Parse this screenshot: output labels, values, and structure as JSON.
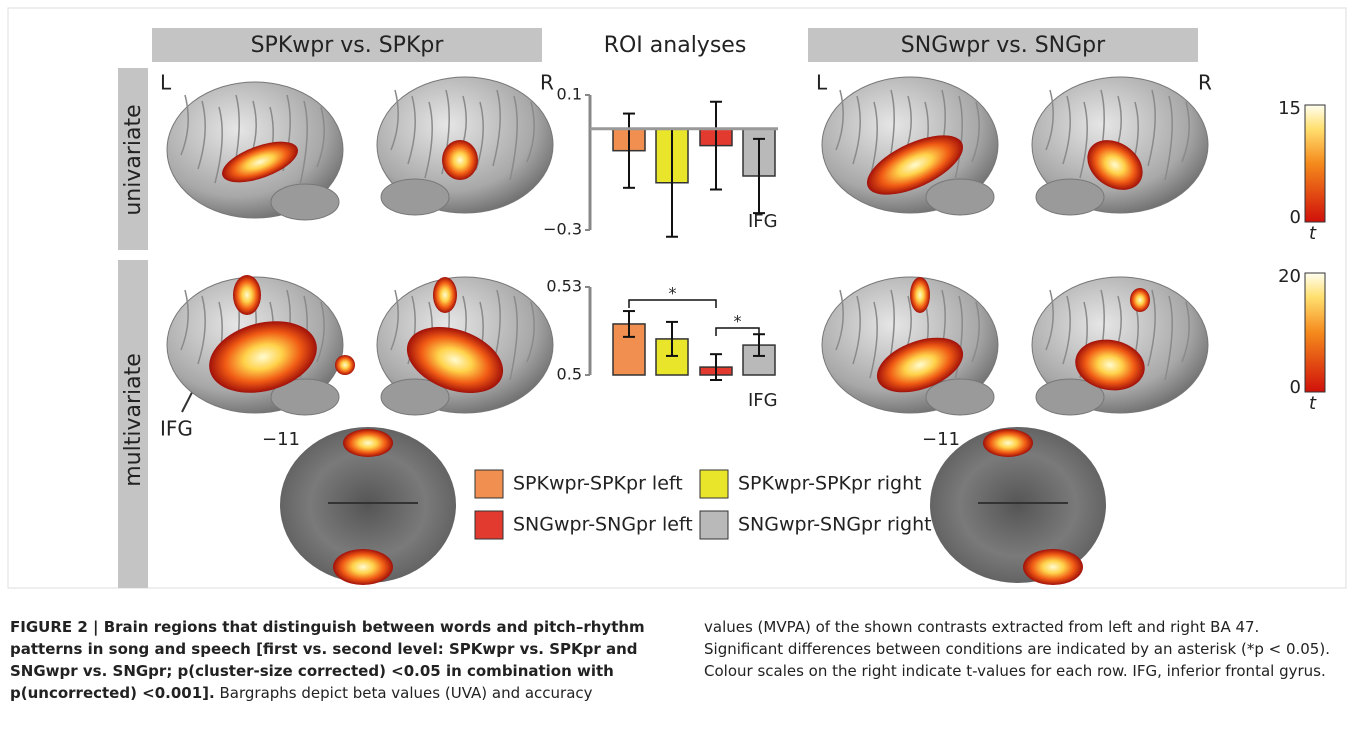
{
  "headers": [
    "SPKwpr vs. SPKpr",
    "ROI analyses",
    "SNGwpr vs. SNGpr"
  ],
  "hemisphere_labels": [
    "L",
    "R",
    "L",
    "R"
  ],
  "row_labels": [
    "univariate",
    "multivariate"
  ],
  "region_callout": "IFG",
  "slice_labels": [
    "−11",
    "−11"
  ],
  "colorbars": [
    {
      "min": 0,
      "max": 15,
      "label": "t"
    },
    {
      "min": 0,
      "max": 20,
      "label": "t"
    }
  ],
  "legend": [
    {
      "name": "SPKwpr-SPKpr left",
      "color": "#f08f4f"
    },
    {
      "name": "SPKwpr-SPKpr right",
      "color": "#e8e52a"
    },
    {
      "name": "SNGwpr-SNGpr left",
      "color": "#e23a2f"
    },
    {
      "name": "SNGwpr-SNGpr right",
      "color": "#b9b9b9"
    }
  ],
  "chart_data": [
    {
      "type": "bar",
      "label": "IFG",
      "values": [
        -0.065,
        -0.16,
        -0.05,
        -0.14
      ],
      "errors": [
        0.11,
        0.16,
        0.13,
        0.11
      ],
      "ylim": [
        -0.3,
        0.1
      ],
      "yticks": [
        {
          "value": -0.3,
          "label": "−0.3"
        },
        0.1
      ]
    },
    {
      "type": "bar",
      "label": "IFG",
      "values": [
        0.5174,
        0.5123,
        0.5027,
        0.5102
      ],
      "errors": [
        0.0044,
        0.0058,
        0.0044,
        0.0037
      ],
      "ylim": [
        0.5,
        0.53
      ],
      "yticks": [
        0.5,
        0.53
      ],
      "annotations": [
        "*",
        "*"
      ]
    }
  ],
  "caption": {
    "bold": "FIGURE 2 | Brain regions that distinguish between words and pitch–rhythm patterns in song and speech [first vs. second level: SPKwpr vs. SPKpr and SNGwpr vs. SNGpr; p(cluster-size corrected) <0.05 in combination with p(uncorrected) <0.001].",
    "text": " Bargraphs depict beta values (UVA) and accuracy values (MVPA) of the shown contrasts extracted from left and right BA 47. Significant differences between conditions are indicated by an asterisk (*p < 0.05). Colour scales on the right indicate t-values for each row. IFG, inferior frontal gyrus."
  }
}
